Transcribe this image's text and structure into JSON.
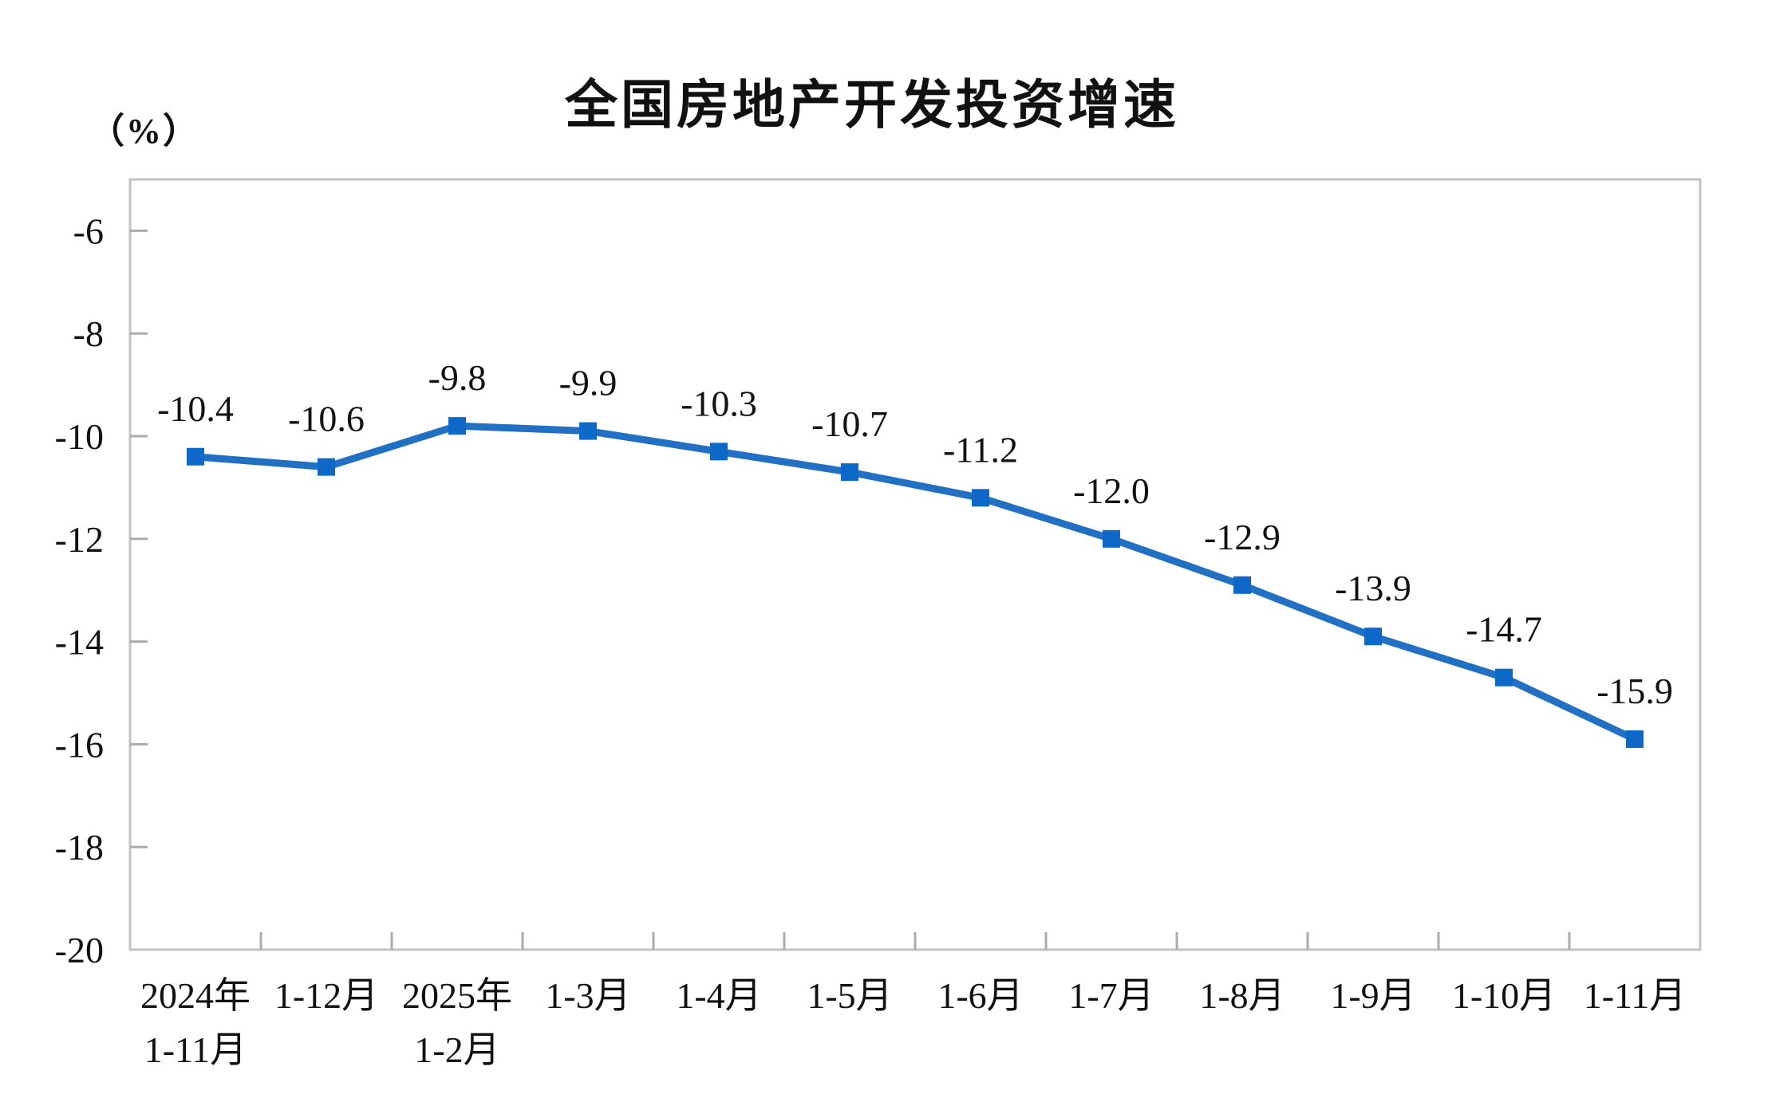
{
  "chart": {
    "title": "全国房地产开发投资增速",
    "unit_label": "（%）",
    "colors": {
      "line": "#2270C3",
      "marker": "#0E68C8",
      "axis_border": "#C2C2C2",
      "tick": "#ABABAB",
      "text": "#111111",
      "background": "#FFFFFF"
    }
  },
  "chart_data": {
    "type": "line",
    "title": "全国房地产开发投资增速",
    "ylabel": "（%）",
    "xlabel": "",
    "categories": [
      "2024年\n1-11月",
      "1-12月",
      "2025年\n1-2月",
      "1-3月",
      "1-4月",
      "1-5月",
      "1-6月",
      "1-7月",
      "1-8月",
      "1-9月",
      "1-10月",
      "1-11月"
    ],
    "values": [
      -10.4,
      -10.6,
      -9.8,
      -9.9,
      -10.3,
      -10.7,
      -11.2,
      -12.0,
      -12.9,
      -13.9,
      -14.7,
      -15.9
    ],
    "data_labels": [
      "-10.4",
      "-10.6",
      "-9.8",
      "-9.9",
      "-10.3",
      "-10.7",
      "-11.2",
      "-12.0",
      "-12.9",
      "-13.9",
      "-14.7",
      "-15.9"
    ],
    "ylim": [
      -20,
      -5
    ],
    "yticks": [
      -6,
      -8,
      -10,
      -12,
      -14,
      -16,
      -18,
      -20
    ],
    "grid": false,
    "legend": null,
    "marker": "square"
  }
}
